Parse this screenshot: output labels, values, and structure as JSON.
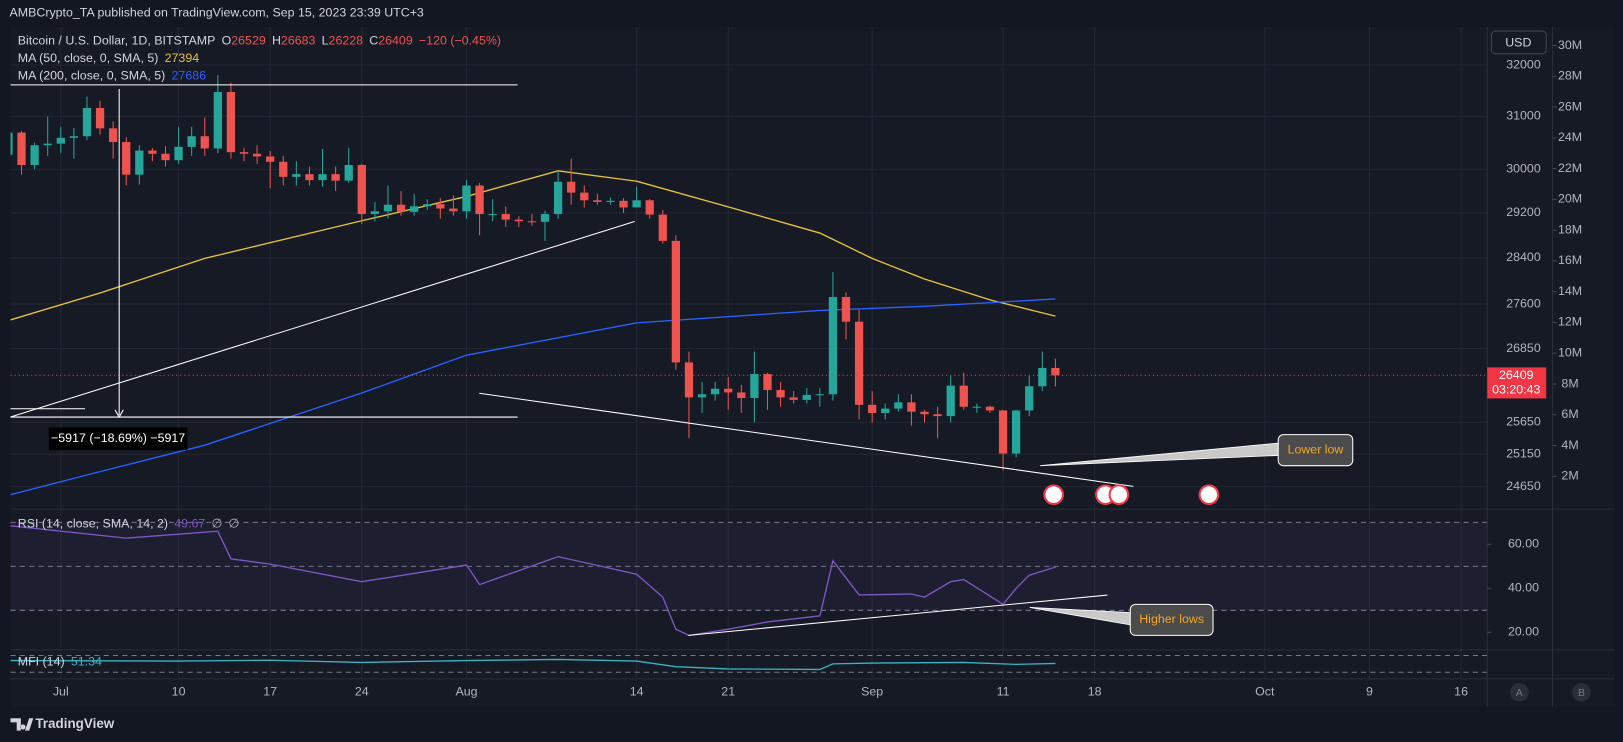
{
  "header": {
    "publisher": "AMBCrypto_TA published on TradingView.com, Sep 15, 2023 23:39 UTC+3",
    "brand": "TradingView"
  },
  "ui": {
    "currency": "USD",
    "buttons": [
      "A",
      "B"
    ]
  },
  "chart_data": [
    {
      "type": "candlestick",
      "title": "Bitcoin / U.S. Dollar, 1D, BITSTAMP",
      "ohlc_labels": [
        "O",
        "H",
        "L",
        "C"
      ],
      "change": "−120 (−0.45%)",
      "countdown": "03:20:43",
      "up_color": "#26a69a",
      "down_color": "#ef5350",
      "log_scale": true,
      "grid": true,
      "x": [
        "2023-06-27",
        "2023-06-28",
        "2023-06-29",
        "2023-06-30",
        "2023-07-01",
        "2023-07-02",
        "2023-07-03",
        "2023-07-04",
        "2023-07-05",
        "2023-07-06",
        "2023-07-07",
        "2023-07-08",
        "2023-07-09",
        "2023-07-10",
        "2023-07-11",
        "2023-07-12",
        "2023-07-13",
        "2023-07-14",
        "2023-07-15",
        "2023-07-16",
        "2023-07-17",
        "2023-07-18",
        "2023-07-19",
        "2023-07-20",
        "2023-07-21",
        "2023-07-22",
        "2023-07-23",
        "2023-07-24",
        "2023-07-25",
        "2023-07-26",
        "2023-07-27",
        "2023-07-28",
        "2023-07-29",
        "2023-07-30",
        "2023-07-31",
        "2023-08-01",
        "2023-08-02",
        "2023-08-03",
        "2023-08-04",
        "2023-08-05",
        "2023-08-06",
        "2023-08-07",
        "2023-08-08",
        "2023-08-09",
        "2023-08-10",
        "2023-08-11",
        "2023-08-12",
        "2023-08-13",
        "2023-08-14",
        "2023-08-15",
        "2023-08-16",
        "2023-08-17",
        "2023-08-18",
        "2023-08-19",
        "2023-08-20",
        "2023-08-21",
        "2023-08-22",
        "2023-08-23",
        "2023-08-24",
        "2023-08-25",
        "2023-08-26",
        "2023-08-27",
        "2023-08-28",
        "2023-08-29",
        "2023-08-30",
        "2023-08-31",
        "2023-09-01",
        "2023-09-02",
        "2023-09-03",
        "2023-09-04",
        "2023-09-05",
        "2023-09-06",
        "2023-09-07",
        "2023-09-08",
        "2023-09-09",
        "2023-09-10",
        "2023-09-11",
        "2023-09-12",
        "2023-09-13",
        "2023-09-14",
        "2023-09-15"
      ],
      "open": [
        30270,
        30690,
        30080,
        30450,
        30480,
        30590,
        30620,
        31160,
        30770,
        30510,
        29900,
        30350,
        30290,
        30170,
        30420,
        30620,
        30390,
        31470,
        30320,
        30290,
        30240,
        30140,
        29860,
        29910,
        29800,
        29910,
        29790,
        30080,
        29180,
        29230,
        29350,
        29220,
        29320,
        29360,
        29280,
        29230,
        29700,
        29180,
        29180,
        29080,
        29050,
        29040,
        29180,
        29770,
        29570,
        29430,
        29400,
        29420,
        29300,
        29430,
        29170,
        28700,
        26620,
        26050,
        26100,
        26190,
        26130,
        26040,
        26430,
        26170,
        26050,
        26010,
        26090,
        26100,
        27720,
        27300,
        25930,
        25800,
        25870,
        25970,
        25820,
        25780,
        25750,
        26240,
        25900,
        25900,
        25840,
        25160,
        25840,
        26230,
        26529
      ],
      "high": [
        30800,
        30720,
        30500,
        31000,
        30800,
        30780,
        31380,
        31300,
        30900,
        30600,
        30450,
        30400,
        30430,
        30800,
        30800,
        30980,
        31800,
        31650,
        30400,
        30450,
        30340,
        30250,
        30150,
        30050,
        30380,
        30050,
        30400,
        30100,
        29400,
        29700,
        29600,
        29550,
        29450,
        29470,
        29520,
        29800,
        29750,
        29450,
        29320,
        29140,
        29180,
        29240,
        29950,
        30200,
        29700,
        29550,
        29480,
        29470,
        29680,
        29450,
        29250,
        28800,
        26800,
        26300,
        26300,
        26380,
        26250,
        26800,
        26450,
        26300,
        26150,
        26200,
        26200,
        28150,
        27800,
        27500,
        26150,
        25950,
        26100,
        26100,
        25850,
        25900,
        26400,
        26450,
        25950,
        25920,
        25850,
        25850,
        26400,
        26800,
        26683
      ],
      "low": [
        30200,
        29900,
        30000,
        30250,
        30300,
        30200,
        30550,
        30650,
        30200,
        29700,
        29720,
        30150,
        30050,
        30100,
        30250,
        30250,
        30300,
        30200,
        30150,
        30100,
        29650,
        29700,
        29700,
        29700,
        29680,
        29600,
        29750,
        29000,
        29050,
        29100,
        29150,
        29150,
        29250,
        29100,
        29150,
        29100,
        28800,
        29050,
        28950,
        28950,
        28970,
        28700,
        29100,
        29350,
        29300,
        29350,
        29350,
        29200,
        29300,
        29100,
        28650,
        26500,
        25400,
        25800,
        26000,
        25850,
        25800,
        25650,
        25850,
        25900,
        25950,
        25950,
        25900,
        26000,
        27000,
        25700,
        25650,
        25700,
        25820,
        25600,
        25650,
        25400,
        25650,
        25850,
        25800,
        25800,
        24900,
        25100,
        25750,
        26150,
        26228
      ],
      "close": [
        30690,
        30080,
        30450,
        30480,
        30590,
        30620,
        31160,
        30770,
        30510,
        29900,
        30350,
        30290,
        30170,
        30420,
        30620,
        30390,
        31470,
        30320,
        30290,
        30240,
        30140,
        29860,
        29910,
        29800,
        29910,
        29790,
        30080,
        29180,
        29230,
        29350,
        29220,
        29320,
        29360,
        29280,
        29230,
        29700,
        29180,
        29180,
        29080,
        29050,
        29040,
        29180,
        29770,
        29570,
        29430,
        29400,
        29420,
        29300,
        29430,
        29170,
        28700,
        26620,
        26050,
        26100,
        26190,
        26130,
        26040,
        26430,
        26170,
        26050,
        26010,
        26090,
        26100,
        27720,
        27300,
        25930,
        25800,
        25870,
        25970,
        25820,
        25780,
        25750,
        26240,
        25900,
        25900,
        25840,
        25160,
        25840,
        26230,
        26529,
        26409
      ],
      "overlays": [
        {
          "name": "MA (50, close, 0, SMA, 5)",
          "color": "#e8c33a",
          "x": [
            "2023-06-27",
            "2023-07-04",
            "2023-07-12",
            "2023-07-24",
            "2023-08-01",
            "2023-08-08",
            "2023-08-14",
            "2023-08-21",
            "2023-08-28",
            "2023-09-01",
            "2023-09-05",
            "2023-09-10",
            "2023-09-15"
          ],
          "values": [
            27320,
            27790,
            28390,
            29060,
            29500,
            29970,
            29780,
            29310,
            28840,
            28390,
            28030,
            27670,
            27394
          ]
        },
        {
          "name": "MA (200, close, 0, SMA, 5)",
          "color": "#2962ff",
          "x": [
            "2023-06-27",
            "2023-07-04",
            "2023-07-12",
            "2023-07-24",
            "2023-08-01",
            "2023-08-14",
            "2023-08-28",
            "2023-09-05",
            "2023-09-15"
          ],
          "values": [
            24520,
            24880,
            25290,
            26120,
            26740,
            27280,
            27490,
            27560,
            27686
          ]
        }
      ],
      "xlim": [
        "2023-06-27",
        "2023-10-18"
      ],
      "xticks": [
        {
          "value": "2023-07-01",
          "label": "Jul"
        },
        {
          "value": "2023-07-10",
          "label": "10"
        },
        {
          "value": "2023-07-17",
          "label": "17"
        },
        {
          "value": "2023-07-24",
          "label": "24"
        },
        {
          "value": "2023-08-01",
          "label": "Aug"
        },
        {
          "value": "2023-08-14",
          "label": "14"
        },
        {
          "value": "2023-08-21",
          "label": "21"
        },
        {
          "value": "2023-09-01",
          "label": "Sep"
        },
        {
          "value": "2023-09-11",
          "label": "11"
        },
        {
          "value": "2023-09-18",
          "label": "18"
        },
        {
          "value": "2023-10-01",
          "label": "Oct"
        },
        {
          "value": "2023-10-09",
          "label": "9"
        },
        {
          "value": "2023-10-16",
          "label": "16"
        }
      ],
      "ylim": [
        24340,
        32680
      ],
      "yticks": [
        24650,
        25150,
        25650,
        26850,
        27600,
        28400,
        29200,
        30000,
        31000,
        32000
      ],
      "y2lim": [
        0,
        30000000
      ],
      "y2ticks": [
        {
          "value": 2000000,
          "label": "2M"
        },
        {
          "value": 4000000,
          "label": "4M"
        },
        {
          "value": 6000000,
          "label": "6M"
        },
        {
          "value": 8000000,
          "label": "8M"
        },
        {
          "value": 10000000,
          "label": "10M"
        },
        {
          "value": 12000000,
          "label": "12M"
        },
        {
          "value": 14000000,
          "label": "14M"
        },
        {
          "value": 16000000,
          "label": "16M"
        },
        {
          "value": 18000000,
          "label": "18M"
        },
        {
          "value": 20000000,
          "label": "20M"
        },
        {
          "value": 22000000,
          "label": "22M"
        },
        {
          "value": 24000000,
          "label": "24M"
        },
        {
          "value": 26000000,
          "label": "26M"
        },
        {
          "value": 28000000,
          "label": "28M"
        },
        {
          "value": 30000000,
          "label": "30M"
        }
      ],
      "annotations": [
        "−5917 (−18.69%) −5917",
        "Lower low"
      ]
    },
    {
      "type": "line",
      "extras": [
        "∅",
        "∅"
      ],
      "series": [
        {
          "name": "RSI (14, close, SMA, 14, 2)",
          "color": "#7e57c2",
          "x": [
            "2023-06-27",
            "2023-07-06",
            "2023-07-13",
            "2023-07-14",
            "2023-07-17",
            "2023-07-24",
            "2023-08-01",
            "2023-08-02",
            "2023-08-08",
            "2023-08-14",
            "2023-08-16",
            "2023-08-17",
            "2023-08-18",
            "2023-08-21",
            "2023-08-24",
            "2023-08-28",
            "2023-08-29",
            "2023-08-31",
            "2023-09-04",
            "2023-09-05",
            "2023-09-07",
            "2023-09-08",
            "2023-09-11",
            "2023-09-12",
            "2023-09-13",
            "2023-09-15"
          ],
          "values": [
            68.5,
            62.8,
            66,
            53.4,
            51,
            43,
            50.6,
            41.7,
            54.4,
            46.4,
            36,
            21.4,
            18.6,
            21.4,
            24.7,
            27.5,
            52.5,
            37,
            37.4,
            36,
            43,
            44,
            32.7,
            40,
            46,
            49.67
          ]
        }
      ],
      "ylim": [
        12,
        76
      ],
      "bands": [
        30,
        50,
        70
      ],
      "yticks": [
        {
          "value": 20,
          "label": "20.00"
        },
        {
          "value": 40,
          "label": "40.00"
        },
        {
          "value": 60,
          "label": "60.00"
        }
      ],
      "annotations": [
        "Higher lows"
      ]
    },
    {
      "type": "line",
      "series": [
        {
          "name": "MFI (14)",
          "color": "#3bb3c3",
          "x": [
            "2023-06-27",
            "2023-07-10",
            "2023-07-17",
            "2023-07-24",
            "2023-08-01",
            "2023-08-08",
            "2023-08-14",
            "2023-08-17",
            "2023-08-21",
            "2023-08-28",
            "2023-08-29",
            "2023-09-01",
            "2023-09-08",
            "2023-09-12",
            "2023-09-15"
          ],
          "values": [
            62,
            60,
            63,
            55,
            62,
            66,
            60,
            40,
            32,
            30,
            50,
            53,
            55,
            48,
            51.34
          ]
        }
      ],
      "ylim": [
        0,
        100
      ],
      "bands": [
        20,
        80
      ]
    }
  ]
}
